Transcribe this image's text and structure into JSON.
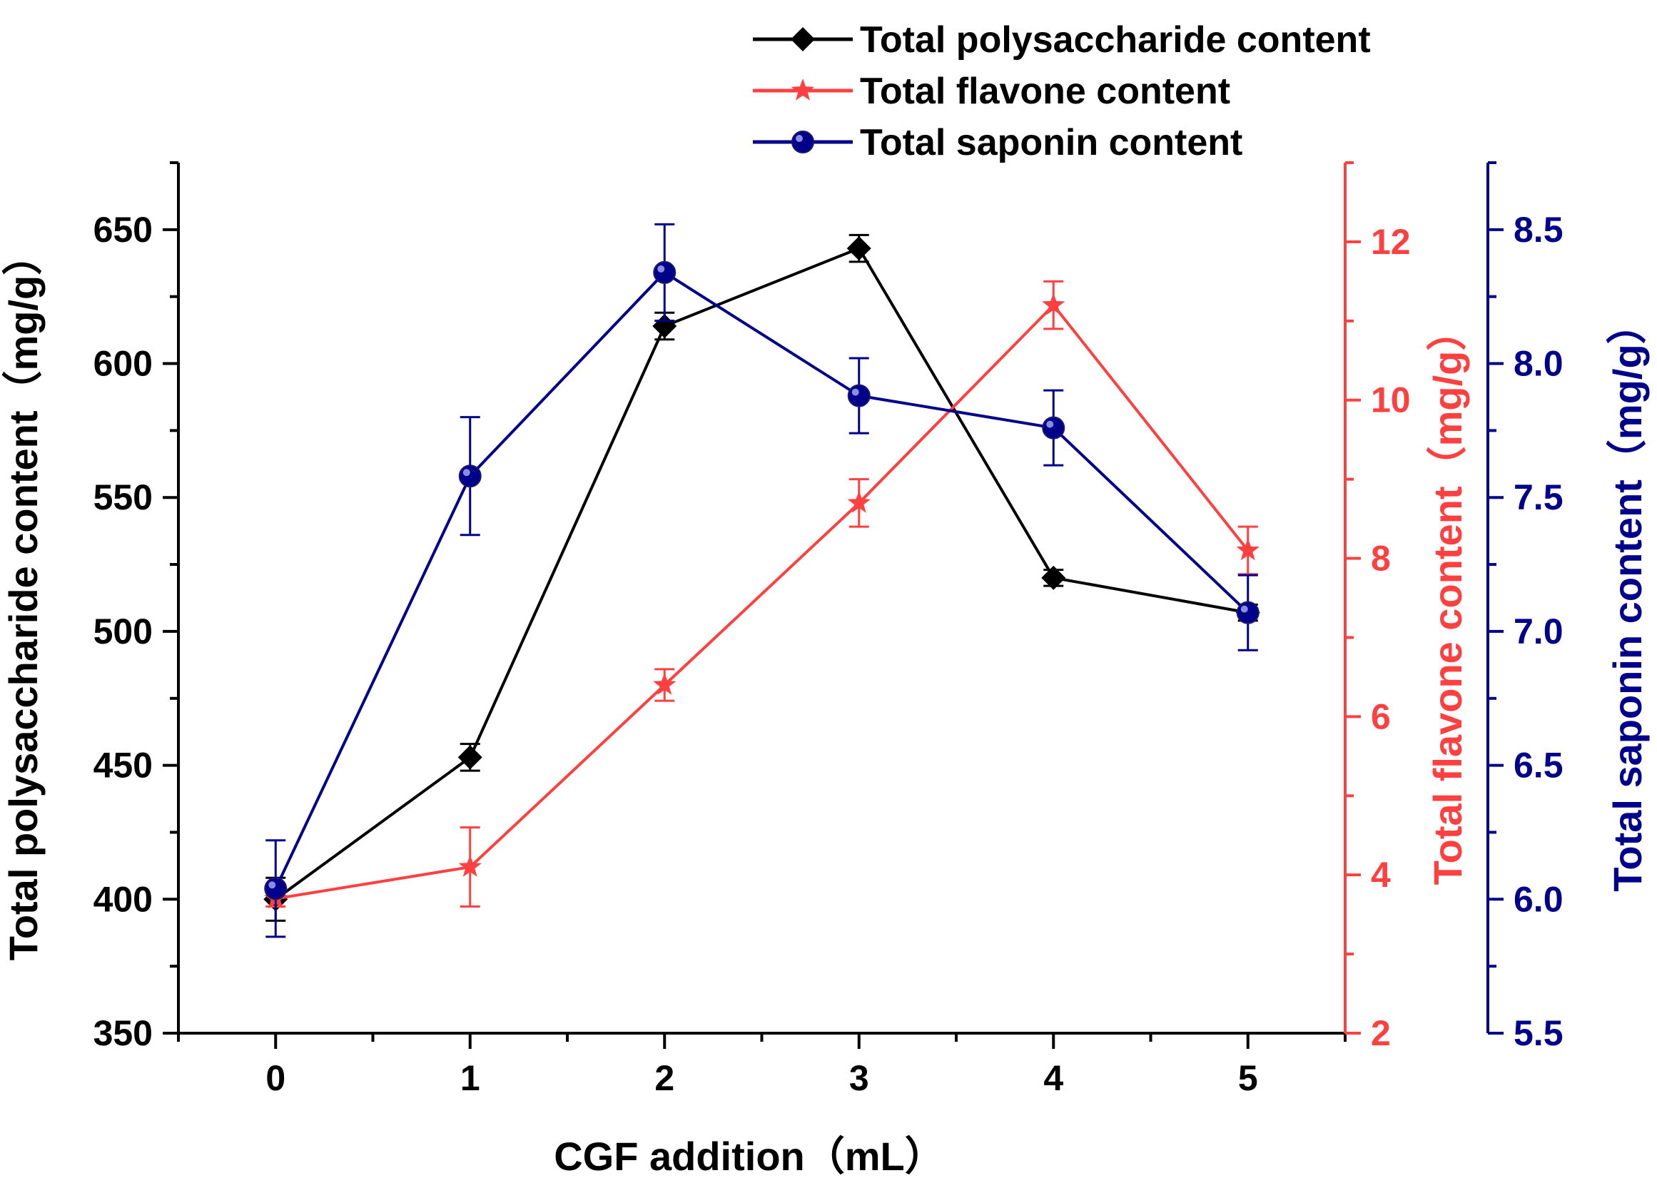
{
  "chart_data": {
    "type": "line",
    "title": "",
    "xlabel": "CGF addition（mL）",
    "x": [
      0,
      1,
      2,
      3,
      4,
      5
    ],
    "xlim": [
      -0.5,
      5.5
    ],
    "x_ticks": [
      "0",
      "1",
      "2",
      "3",
      "4",
      "5"
    ],
    "axes": [
      {
        "id": "left",
        "label": "Total polysaccharide content（mg/g）",
        "color": "#000000",
        "ylim": [
          350,
          675
        ],
        "ticks": [
          "350",
          "400",
          "450",
          "500",
          "550",
          "600",
          "650"
        ]
      },
      {
        "id": "right1",
        "label": "Total flavone content（mg/g）",
        "color": "#ff4040",
        "ylim": [
          2,
          13
        ],
        "ticks": [
          "2",
          "4",
          "6",
          "8",
          "10",
          "12"
        ]
      },
      {
        "id": "right2",
        "label": "Total saponin content（mg/g）",
        "color": "#00008b",
        "ylim": [
          5.5,
          8.75
        ],
        "ticks": [
          "5.5",
          "6.0",
          "6.5",
          "7.0",
          "7.5",
          "8.0",
          "8.5"
        ]
      }
    ],
    "series": [
      {
        "name": "Total polysaccharide content",
        "axis": "left",
        "color": "#000000",
        "marker": "diamond",
        "values": [
          400,
          453,
          614,
          643,
          520,
          507
        ],
        "errors": [
          8,
          5,
          5,
          5,
          3,
          3
        ]
      },
      {
        "name": "Total flavone content",
        "axis": "right1",
        "color": "#ff4040",
        "marker": "star",
        "values": [
          3.7,
          4.1,
          6.4,
          8.7,
          11.2,
          8.1
        ],
        "errors": [
          0.1,
          0.5,
          0.2,
          0.3,
          0.3,
          0.3
        ]
      },
      {
        "name": "Total saponin content",
        "axis": "right2",
        "color": "#00008b",
        "marker": "circle",
        "values": [
          6.04,
          7.58,
          8.34,
          7.88,
          7.76,
          7.07
        ],
        "errors": [
          0.18,
          0.22,
          0.18,
          0.14,
          0.14,
          0.14
        ]
      }
    ],
    "legend": {
      "position": "top-center"
    },
    "grid": false
  }
}
